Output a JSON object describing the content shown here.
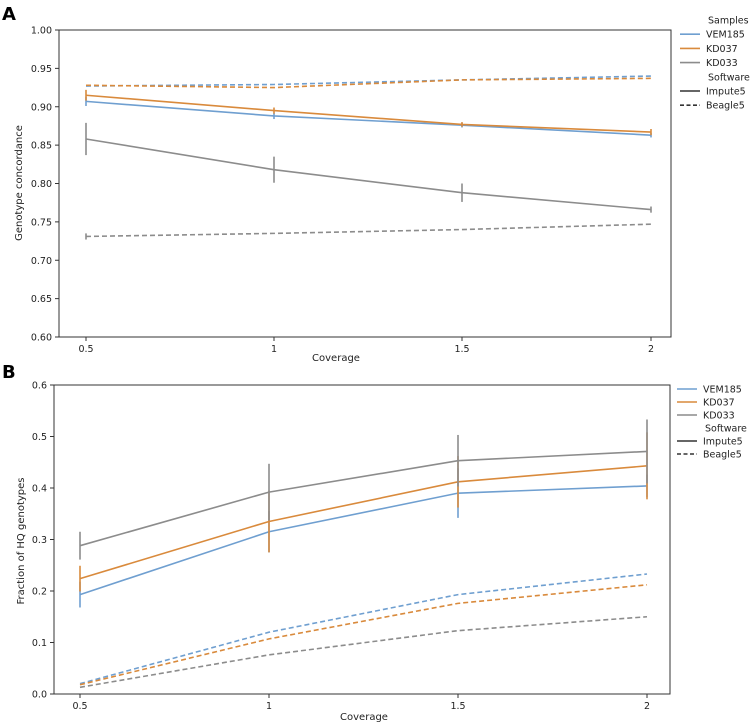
{
  "chart_data": [
    {
      "panel_label": "A",
      "type": "line",
      "xlabel": "Coverage",
      "ylabel": "Genotype concordance",
      "x": [
        0.5,
        1,
        1.5,
        2
      ],
      "xtick_labels": [
        "0.5",
        "1",
        "1.5",
        "2"
      ],
      "ylim": [
        0.6,
        1.0
      ],
      "yticks": [
        "0.60",
        "0.65",
        "0.70",
        "0.75",
        "0.80",
        "0.85",
        "0.90",
        "0.95",
        "1.00"
      ],
      "yticks_values": [
        0.6,
        0.65,
        0.7,
        0.75,
        0.8,
        0.85,
        0.9,
        0.95,
        1.0
      ],
      "legend": {
        "placement": "right",
        "entries": [
          {
            "label": "Samples",
            "style": "header"
          },
          {
            "label": "VEM185",
            "color": "#6f9fd0",
            "style": "solid"
          },
          {
            "label": "KD037",
            "color": "#d98a3c",
            "style": "solid"
          },
          {
            "label": "KD033",
            "color": "#8c8c8c",
            "style": "solid"
          },
          {
            "label": "Software",
            "style": "header"
          },
          {
            "label": "Impute5",
            "color": "#333333",
            "style": "solid"
          },
          {
            "label": "Beagle5",
            "color": "#333333",
            "style": "dashed"
          }
        ]
      },
      "series": [
        {
          "name": "VEM185 Impute5",
          "color": "#6f9fd0",
          "dash": false,
          "values": [
            0.907,
            0.888,
            0.876,
            0.863
          ],
          "err": [
            0.006,
            0.004,
            0.003,
            0.003
          ]
        },
        {
          "name": "KD037 Impute5",
          "color": "#d98a3c",
          "dash": false,
          "values": [
            0.915,
            0.895,
            0.877,
            0.867
          ],
          "err": [
            0.007,
            0.004,
            0.003,
            0.004
          ]
        },
        {
          "name": "KD033 Impute5",
          "color": "#8c8c8c",
          "dash": false,
          "values": [
            0.858,
            0.818,
            0.788,
            0.766
          ],
          "err": [
            0.021,
            0.017,
            0.012,
            0.004
          ]
        },
        {
          "name": "VEM185 Beagle5",
          "color": "#6f9fd0",
          "dash": true,
          "values": [
            0.927,
            0.929,
            0.935,
            0.94
          ],
          "err": [
            0,
            0,
            0,
            0
          ]
        },
        {
          "name": "KD037 Beagle5",
          "color": "#d98a3c",
          "dash": true,
          "values": [
            0.928,
            0.925,
            0.935,
            0.937
          ],
          "err": [
            0,
            0,
            0,
            0
          ]
        },
        {
          "name": "KD033 Beagle5",
          "color": "#8c8c8c",
          "dash": true,
          "values": [
            0.731,
            0.735,
            0.74,
            0.747
          ],
          "err": [
            0.004,
            0,
            0,
            0
          ]
        }
      ]
    },
    {
      "panel_label": "B",
      "type": "line",
      "xlabel": "Coverage",
      "ylabel": "Fraction of HQ genotypes",
      "x": [
        0.5,
        1,
        1.5,
        2
      ],
      "xtick_labels": [
        "0.5",
        "1",
        "1.5",
        "2"
      ],
      "ylim": [
        0.0,
        0.6
      ],
      "yticks": [
        "0.0",
        "0.1",
        "0.2",
        "0.3",
        "0.4",
        "0.5",
        "0.6"
      ],
      "yticks_values": [
        0.0,
        0.1,
        0.2,
        0.3,
        0.4,
        0.5,
        0.6
      ],
      "legend": {
        "placement": "right",
        "entries": [
          {
            "label": "VEM185",
            "color": "#6f9fd0",
            "style": "solid"
          },
          {
            "label": "KD037",
            "color": "#d98a3c",
            "style": "solid"
          },
          {
            "label": "KD033",
            "color": "#8c8c8c",
            "style": "solid"
          },
          {
            "label": "Software",
            "style": "header"
          },
          {
            "label": "Impute5",
            "color": "#333333",
            "style": "solid"
          },
          {
            "label": "Beagle5",
            "color": "#333333",
            "style": "dashed"
          }
        ]
      },
      "series": [
        {
          "name": "VEM185 Impute5",
          "color": "#6f9fd0",
          "dash": false,
          "values": [
            0.193,
            0.315,
            0.39,
            0.404
          ],
          "err": [
            0.025,
            0.04,
            0.048,
            0.022
          ]
        },
        {
          "name": "KD037 Impute5",
          "color": "#d98a3c",
          "dash": false,
          "values": [
            0.224,
            0.335,
            0.412,
            0.443
          ],
          "err": [
            0.025,
            0.06,
            0.05,
            0.065
          ]
        },
        {
          "name": "KD033 Impute5",
          "color": "#8c8c8c",
          "dash": false,
          "values": [
            0.288,
            0.392,
            0.453,
            0.471
          ],
          "err": [
            0.027,
            0.055,
            0.05,
            0.062
          ]
        },
        {
          "name": "VEM185 Beagle5",
          "color": "#6f9fd0",
          "dash": true,
          "values": [
            0.02,
            0.12,
            0.193,
            0.233
          ],
          "err": [
            0,
            0,
            0,
            0
          ]
        },
        {
          "name": "KD037 Beagle5",
          "color": "#d98a3c",
          "dash": true,
          "values": [
            0.018,
            0.107,
            0.176,
            0.212
          ],
          "err": [
            0,
            0,
            0,
            0
          ]
        },
        {
          "name": "KD033 Beagle5",
          "color": "#8c8c8c",
          "dash": true,
          "values": [
            0.013,
            0.076,
            0.123,
            0.15
          ],
          "err": [
            0,
            0,
            0,
            0
          ]
        }
      ]
    }
  ]
}
